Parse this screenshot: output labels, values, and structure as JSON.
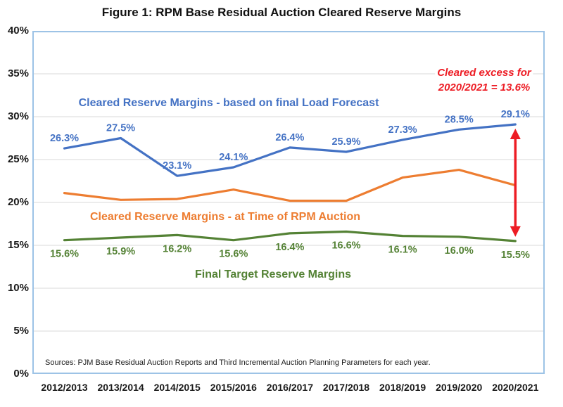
{
  "chart_data": {
    "type": "line",
    "title": "Figure 1: RPM Base Residual Auction Cleared Reserve Margins",
    "categories": [
      "2012/2013",
      "2013/2014",
      "2014/2015",
      "2015/2016",
      "2016/2017",
      "2017/2018",
      "2018/2019",
      "2019/2020",
      "2020/2021"
    ],
    "series": [
      {
        "name": "Cleared Reserve Margins - based on final Load Forecast",
        "color": "#4472C4",
        "values": [
          26.3,
          27.5,
          23.1,
          24.1,
          26.4,
          25.9,
          27.3,
          28.5,
          29.1
        ],
        "data_labels": true,
        "label_position": "above"
      },
      {
        "name": "Cleared Reserve Margins - at Time of RPM Auction",
        "color": "#ED7D31",
        "values": [
          21.1,
          20.3,
          20.4,
          21.5,
          20.2,
          20.2,
          22.9,
          23.8,
          22.0
        ],
        "data_labels": false,
        "label_position": "none"
      },
      {
        "name": "Final Target Reserve Margins",
        "color": "#548235",
        "values": [
          15.6,
          15.9,
          16.2,
          15.6,
          16.4,
          16.6,
          16.1,
          16.0,
          15.5
        ],
        "data_labels": true,
        "label_position": "below"
      }
    ],
    "xlabel": "",
    "ylabel": "",
    "ylim": [
      0,
      40
    ],
    "yticks": [
      0,
      5,
      10,
      15,
      20,
      25,
      30,
      35,
      40
    ],
    "ytick_labels": [
      "0%",
      "5%",
      "10%",
      "15%",
      "20%",
      "25%",
      "30%",
      "35%",
      "40%"
    ],
    "grid": "horizontal",
    "legend": "inline-colored-labels",
    "annotation": {
      "line1": "Cleared excess for",
      "line2": "2020/2021 = 13.6%",
      "color": "#ed1c24",
      "arrow": "vertical-double-headed",
      "arrow_at_category": "2020/2021",
      "arrow_between_series": [
        0,
        2
      ]
    },
    "source": "Sources: PJM Base Residual Auction Reports and Third Incremental Auction Planning Parameters for each year."
  }
}
